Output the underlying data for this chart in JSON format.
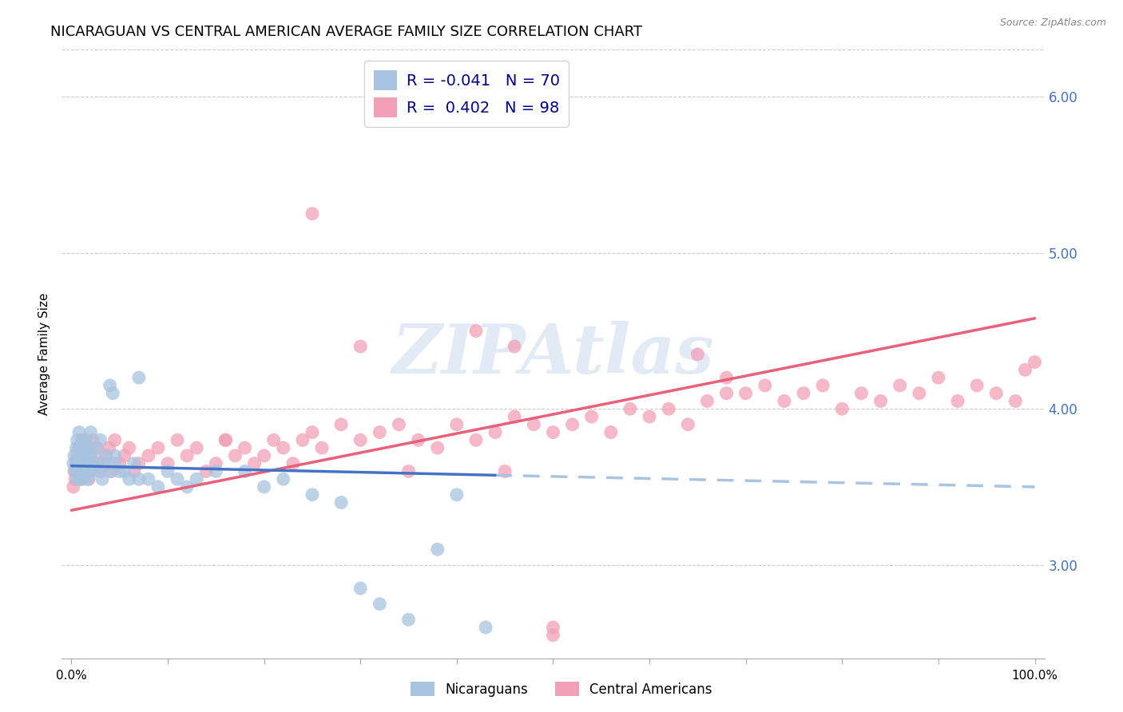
{
  "title": "NICARAGUAN VS CENTRAL AMERICAN AVERAGE FAMILY SIZE CORRELATION CHART",
  "source": "Source: ZipAtlas.com",
  "ylabel": "Average Family Size",
  "right_yticks": [
    3.0,
    4.0,
    5.0,
    6.0
  ],
  "watermark": "ZIPAtlas",
  "legend_blue": "R = -0.041   N = 70",
  "legend_pink": "R =  0.402   N = 98",
  "blue_scatter_color": "#a8c4e0",
  "pink_scatter_color": "#f2a0b8",
  "blue_line_color": "#4472c4",
  "pink_line_color": "#e8607a",
  "blue_dash_color": "#a8c4e0",
  "title_fontsize": 13,
  "axis_label_fontsize": 11,
  "right_tick_color": "#4472c4",
  "background_color": "#ffffff",
  "grid_color": "#cccccc",
  "ylim": [
    2.4,
    6.3
  ],
  "xlim": [
    -0.01,
    1.01
  ],
  "blue_scatter": {
    "x": [
      0.002,
      0.003,
      0.004,
      0.005,
      0.005,
      0.006,
      0.006,
      0.007,
      0.007,
      0.008,
      0.008,
      0.008,
      0.009,
      0.009,
      0.01,
      0.01,
      0.01,
      0.011,
      0.011,
      0.012,
      0.012,
      0.013,
      0.013,
      0.014,
      0.015,
      0.015,
      0.016,
      0.017,
      0.018,
      0.019,
      0.02,
      0.021,
      0.022,
      0.023,
      0.025,
      0.027,
      0.03,
      0.032,
      0.035,
      0.038,
      0.04,
      0.043,
      0.045,
      0.05,
      0.055,
      0.06,
      0.065,
      0.07,
      0.08,
      0.09,
      0.1,
      0.11,
      0.12,
      0.13,
      0.15,
      0.18,
      0.2,
      0.22,
      0.25,
      0.28,
      0.3,
      0.32,
      0.35,
      0.38,
      0.4,
      0.43,
      0.07,
      0.04,
      0.03,
      0.045
    ],
    "y": [
      3.65,
      3.7,
      3.6,
      3.75,
      3.65,
      3.8,
      3.55,
      3.7,
      3.65,
      3.75,
      3.6,
      3.85,
      3.65,
      3.55,
      3.75,
      3.6,
      3.7,
      3.65,
      3.8,
      3.55,
      3.7,
      3.65,
      3.75,
      3.6,
      3.8,
      3.65,
      3.7,
      3.55,
      3.75,
      3.6,
      3.85,
      3.7,
      3.65,
      3.6,
      3.75,
      3.65,
      3.6,
      3.55,
      3.7,
      3.65,
      4.15,
      4.1,
      3.65,
      3.6,
      3.6,
      3.55,
      3.65,
      4.2,
      3.55,
      3.5,
      3.6,
      3.55,
      3.5,
      3.55,
      3.6,
      3.6,
      3.5,
      3.55,
      3.45,
      3.4,
      2.85,
      2.75,
      2.65,
      3.1,
      3.45,
      2.6,
      3.55,
      3.6,
      3.8,
      3.7
    ]
  },
  "pink_scatter": {
    "x": [
      0.002,
      0.003,
      0.004,
      0.005,
      0.006,
      0.007,
      0.008,
      0.009,
      0.01,
      0.011,
      0.012,
      0.013,
      0.015,
      0.017,
      0.018,
      0.02,
      0.022,
      0.025,
      0.027,
      0.03,
      0.033,
      0.036,
      0.039,
      0.042,
      0.045,
      0.05,
      0.055,
      0.06,
      0.065,
      0.07,
      0.08,
      0.09,
      0.1,
      0.11,
      0.12,
      0.13,
      0.14,
      0.15,
      0.16,
      0.17,
      0.18,
      0.19,
      0.2,
      0.21,
      0.22,
      0.23,
      0.24,
      0.25,
      0.26,
      0.28,
      0.3,
      0.32,
      0.34,
      0.36,
      0.38,
      0.4,
      0.42,
      0.44,
      0.46,
      0.48,
      0.5,
      0.52,
      0.54,
      0.56,
      0.58,
      0.6,
      0.62,
      0.64,
      0.66,
      0.68,
      0.7,
      0.72,
      0.74,
      0.76,
      0.78,
      0.8,
      0.82,
      0.84,
      0.86,
      0.88,
      0.9,
      0.92,
      0.94,
      0.96,
      0.98,
      1.0,
      0.5,
      0.5,
      0.45,
      0.35,
      0.3,
      0.25,
      0.42,
      0.16,
      0.46,
      0.65,
      0.68,
      0.99
    ],
    "y": [
      3.5,
      3.6,
      3.55,
      3.65,
      3.7,
      3.6,
      3.75,
      3.65,
      3.55,
      3.7,
      3.8,
      3.65,
      3.75,
      3.6,
      3.55,
      3.7,
      3.8,
      3.65,
      3.75,
      3.6,
      3.65,
      3.7,
      3.75,
      3.6,
      3.8,
      3.65,
      3.7,
      3.75,
      3.6,
      3.65,
      3.7,
      3.75,
      3.65,
      3.8,
      3.7,
      3.75,
      3.6,
      3.65,
      3.8,
      3.7,
      3.75,
      3.65,
      3.7,
      3.8,
      3.75,
      3.65,
      3.8,
      3.85,
      3.75,
      3.9,
      3.8,
      3.85,
      3.9,
      3.8,
      3.75,
      3.9,
      3.8,
      3.85,
      3.95,
      3.9,
      3.85,
      3.9,
      3.95,
      3.85,
      4.0,
      3.95,
      4.0,
      3.9,
      4.05,
      4.1,
      4.1,
      4.15,
      4.05,
      4.1,
      4.15,
      4.0,
      4.1,
      4.05,
      4.15,
      4.1,
      4.2,
      4.05,
      4.15,
      4.1,
      4.05,
      4.3,
      2.6,
      2.55,
      3.6,
      3.6,
      4.4,
      5.25,
      4.5,
      3.8,
      4.4,
      4.35,
      4.2,
      4.25
    ]
  },
  "blue_line_solid": {
    "x": [
      0.0,
      0.44
    ],
    "y": [
      3.635,
      3.575
    ]
  },
  "blue_line_dash": {
    "x": [
      0.44,
      1.0
    ],
    "y": [
      3.575,
      3.5
    ]
  },
  "pink_line": {
    "x": [
      0.0,
      1.0
    ],
    "y": [
      3.35,
      4.58
    ]
  }
}
